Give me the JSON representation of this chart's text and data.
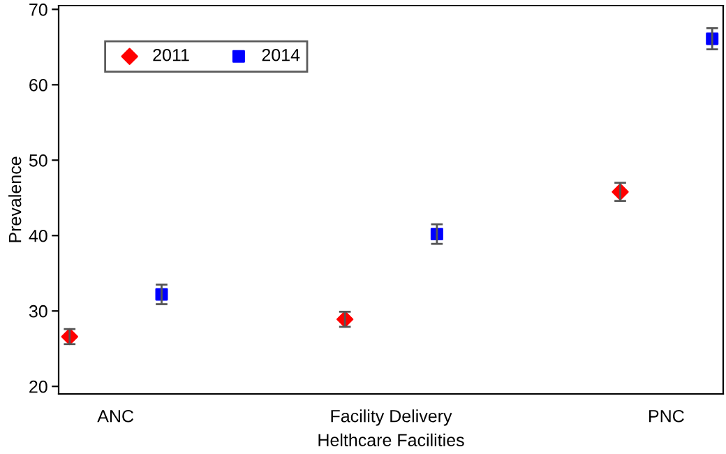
{
  "chart_data": {
    "type": "scatter",
    "xlabel": "Helthcare Facilities",
    "ylabel": "Prevalence",
    "categories": [
      "ANC",
      "Facility Delivery",
      "PNC"
    ],
    "series": [
      {
        "name": "2011",
        "color": "#ff0000",
        "marker": "diamond",
        "values": [
          26.6,
          28.9,
          45.8
        ],
        "errors": [
          1.0,
          1.0,
          1.2
        ]
      },
      {
        "name": "2014",
        "color": "#0000ff",
        "marker": "square",
        "values": [
          32.2,
          40.2,
          66.1
        ],
        "errors": [
          1.3,
          1.3,
          1.4
        ]
      }
    ],
    "ylim": [
      19,
      70.5
    ],
    "yticks": [
      20,
      30,
      40,
      50,
      60,
      70
    ],
    "grid": false,
    "legend": "top left"
  }
}
